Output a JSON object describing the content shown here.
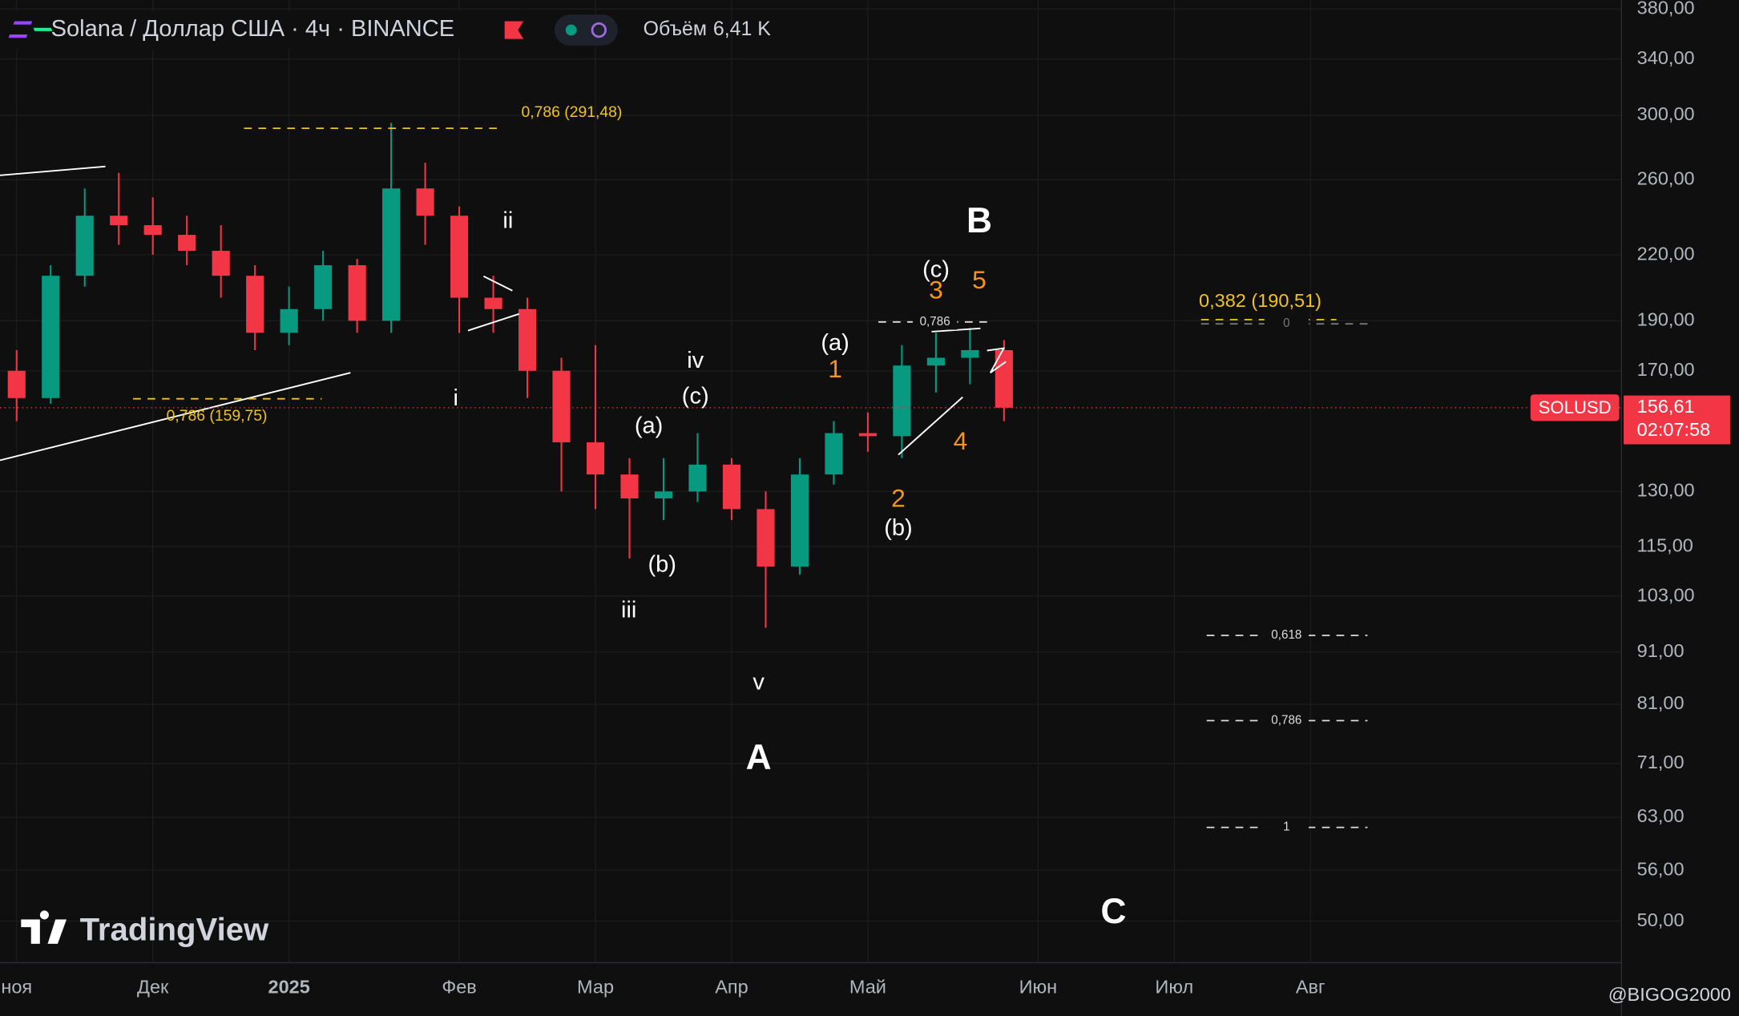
{
  "header": {
    "title": "Solana / Доллар США · 4ч · BINANCE",
    "volume_label": "Объём",
    "volume_value": "6,41 K"
  },
  "chart_data": {
    "type": "candlestick",
    "log_scale": true,
    "grid": true,
    "up_color": "#089981",
    "down_color": "#f23645",
    "categories": [
      "ноя",
      null,
      null,
      null,
      "Дек",
      null,
      null,
      null,
      "2025",
      null,
      null,
      null,
      null,
      "Фев",
      null,
      null,
      null,
      "Мар",
      null,
      null,
      null,
      "Апр",
      null,
      null,
      null,
      "Май",
      null,
      null,
      null,
      null,
      "Июн",
      null,
      null,
      null,
      "Июл",
      null,
      null,
      null,
      "Авг",
      null,
      null,
      null,
      null,
      null,
      null,
      null,
      null
    ],
    "open": [
      170,
      160,
      210,
      240,
      235,
      230,
      222,
      210,
      185,
      195,
      215,
      190,
      255,
      240,
      200,
      195,
      170,
      145,
      135,
      128,
      130,
      138,
      125,
      110,
      135,
      148,
      147,
      172,
      175,
      178,
      null,
      null,
      null,
      null,
      null,
      null,
      null,
      null,
      null,
      null,
      null,
      null,
      null,
      null,
      null,
      null,
      null
    ],
    "high": [
      178,
      215,
      255,
      264,
      250,
      240,
      235,
      215,
      205,
      222,
      218,
      295,
      270,
      245,
      210,
      200,
      175,
      180,
      140,
      140,
      148,
      140,
      130,
      140,
      152,
      155,
      180,
      185,
      187,
      182,
      null,
      null,
      null,
      null,
      null,
      null,
      null,
      null,
      null,
      null,
      null,
      null,
      null,
      null,
      null,
      null,
      null
    ],
    "low": [
      152,
      158,
      205,
      225,
      220,
      215,
      200,
      178,
      180,
      190,
      185,
      185,
      225,
      185,
      185,
      160,
      130,
      125,
      112,
      122,
      127,
      122,
      96,
      108,
      132,
      142,
      140,
      162,
      165,
      152,
      null,
      null,
      null,
      null,
      null,
      null,
      null,
      null,
      null,
      null,
      null,
      null,
      null,
      null,
      null,
      null,
      null
    ],
    "close": [
      160,
      210,
      240,
      235,
      230,
      222,
      210,
      185,
      195,
      215,
      190,
      255,
      240,
      200,
      195,
      170,
      145,
      135,
      128,
      130,
      138,
      125,
      110,
      135,
      148,
      147,
      172,
      175,
      178,
      156.61,
      null,
      null,
      null,
      null,
      null,
      null,
      null,
      null,
      null,
      null,
      null,
      null,
      null,
      null,
      null,
      null,
      null
    ],
    "ylim": [
      45.6,
      387.6
    ],
    "yticks": [
      {
        "value": 50,
        "label": "50,00"
      },
      {
        "value": 56,
        "label": "56,00"
      },
      {
        "value": 63,
        "label": "63,00"
      },
      {
        "value": 71,
        "label": "71,00"
      },
      {
        "value": 81,
        "label": "81,00"
      },
      {
        "value": 91,
        "label": "91,00"
      },
      {
        "value": 103,
        "label": "103,00"
      },
      {
        "value": 115,
        "label": "115,00"
      },
      {
        "value": 130,
        "label": "130,00"
      },
      {
        "value": 170,
        "label": "170,00"
      },
      {
        "value": 190,
        "label": "190,00"
      },
      {
        "value": 220,
        "label": "220,00"
      },
      {
        "value": 260,
        "label": "260,00"
      },
      {
        "value": 300,
        "label": "300,00"
      },
      {
        "value": 340,
        "label": "340,00"
      },
      {
        "value": 380,
        "label": "380,00"
      }
    ],
    "fib_levels": [
      {
        "label": "0,786 (291,48)",
        "value": 291.48
      },
      {
        "label": "0,786 (159,75)",
        "value": 159.75
      },
      {
        "label": "0,382 (190,51)",
        "value": 190.51
      },
      {
        "label": "0",
        "value": 188.7
      },
      {
        "label": "0,618",
        "value": 94.4
      },
      {
        "label": "0,786",
        "value": 78.1
      },
      {
        "label": "1",
        "value": 61.6
      },
      {
        "label": "0,786",
        "value": 189.5
      }
    ],
    "annotations": [
      "ii",
      "i",
      "iii",
      "iv",
      "v",
      "(a)",
      "(b)",
      "(c)",
      "A",
      "(a)",
      "1",
      "2",
      "(b)",
      "(c)",
      "3",
      "B",
      "5",
      "4",
      "C"
    ],
    "price_tag": {
      "symbol": "SOLUSD",
      "value": 156.61,
      "label": "156,61",
      "countdown": "02:07:58"
    }
  },
  "branding": {
    "logo": "TradingView",
    "watermark": "@BIGOG2000"
  }
}
